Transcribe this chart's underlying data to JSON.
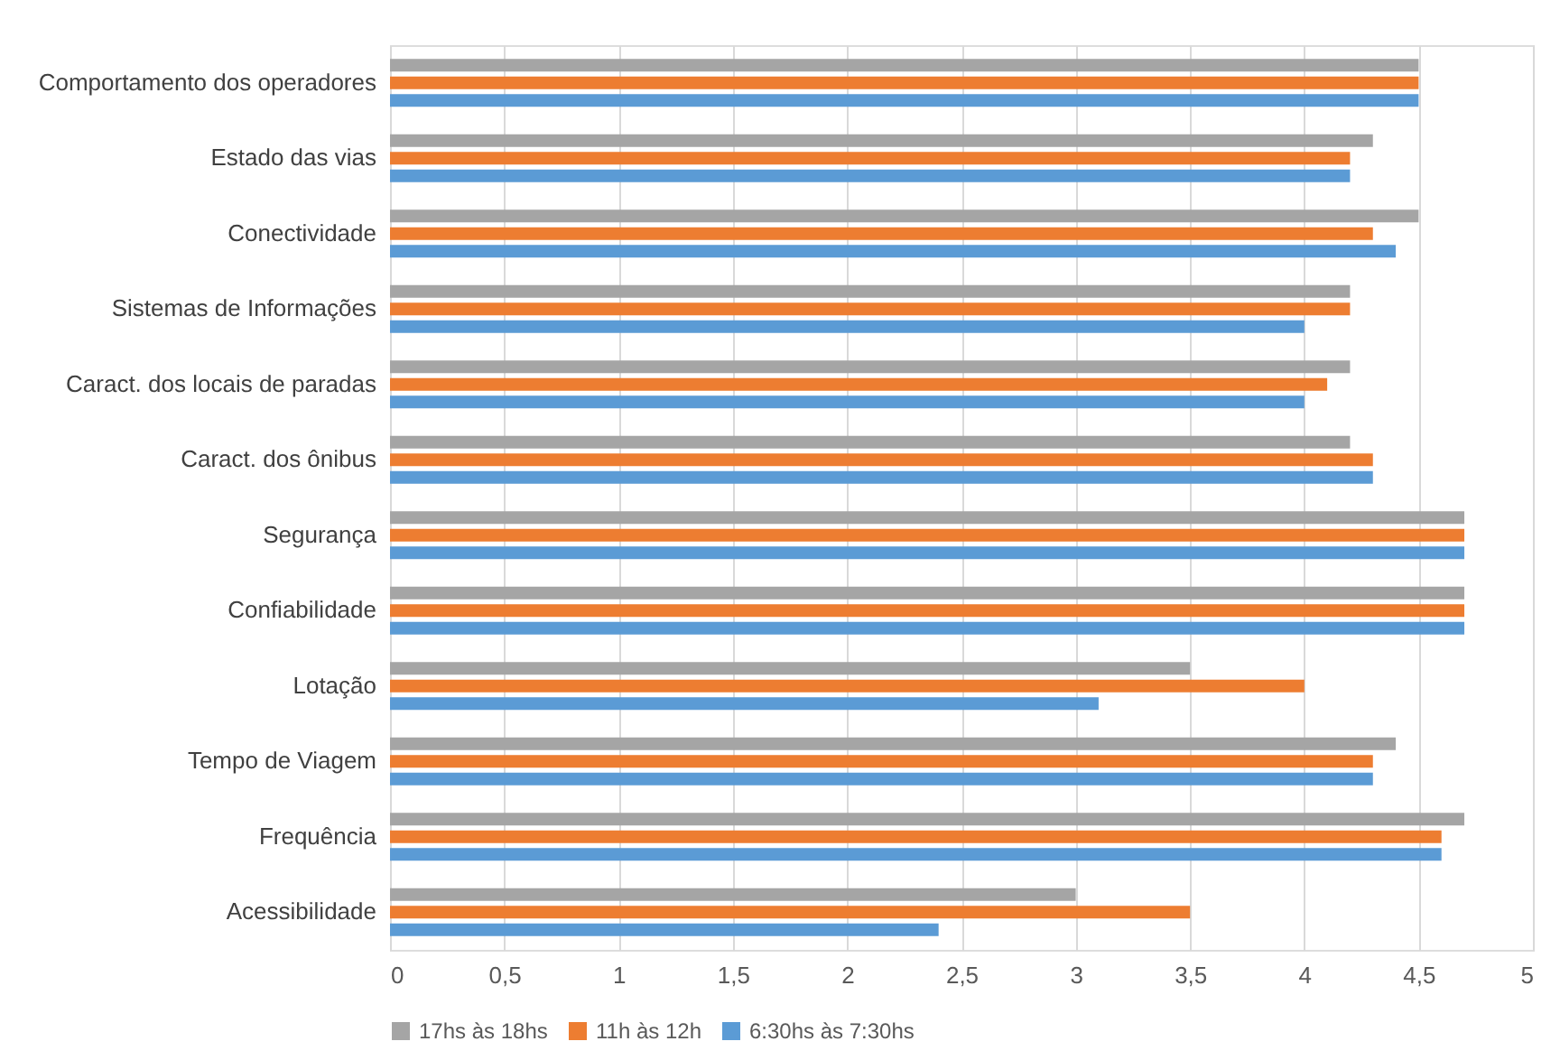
{
  "chart_data": {
    "type": "bar",
    "orientation": "horizontal",
    "categories": [
      "Comportamento dos operadores",
      "Estado das vias",
      "Conectividade",
      "Sistemas de Informações",
      "Caract. dos locais de paradas",
      "Caract. dos ônibus",
      "Segurança",
      "Confiabilidade",
      "Lotação",
      "Tempo de Viagem",
      "Frequência",
      "Acessibilidade"
    ],
    "series": [
      {
        "name": "17hs às 18hs",
        "color": "#a5a5a5",
        "values": [
          4.5,
          4.3,
          4.5,
          4.2,
          4.2,
          4.2,
          4.7,
          4.7,
          3.5,
          4.4,
          4.7,
          3.0
        ]
      },
      {
        "name": "11h às 12h",
        "color": "#ed7d31",
        "values": [
          4.5,
          4.2,
          4.3,
          4.2,
          4.1,
          4.3,
          4.7,
          4.7,
          4.0,
          4.3,
          4.6,
          3.5
        ]
      },
      {
        "name": "6:30hs às 7:30hs",
        "color": "#5b9bd5",
        "values": [
          4.5,
          4.2,
          4.4,
          4.0,
          4.0,
          4.3,
          4.7,
          4.7,
          3.1,
          4.3,
          4.6,
          2.4
        ]
      }
    ],
    "xlim": [
      0,
      5
    ],
    "xticks": [
      0,
      {
        "value": 0.5,
        "label": "0,5"
      },
      1,
      {
        "value": 1.5,
        "label": "1,5"
      },
      2,
      {
        "value": 2.5,
        "label": "2,5"
      },
      3,
      {
        "value": 3.5,
        "label": "3,5"
      },
      4,
      {
        "value": 4.5,
        "label": "4,5"
      },
      5
    ],
    "grid": "x",
    "legend": "bottom"
  }
}
